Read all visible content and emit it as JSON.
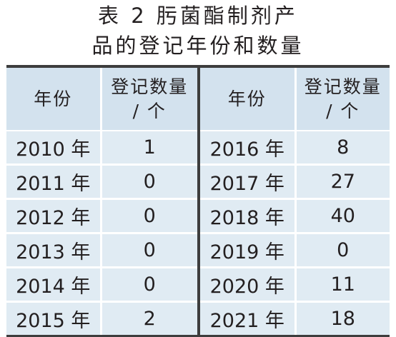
{
  "title": {
    "line1": "表 2  肟菌酯制剂产",
    "line2": "品的登记年份和数量"
  },
  "table": {
    "headers": {
      "year": "年份",
      "count_line1": "登记数量",
      "count_line2": "/ 个"
    },
    "left_rows": [
      {
        "year": "2010 年",
        "count": "1"
      },
      {
        "year": "2011 年",
        "count": "0"
      },
      {
        "year": "2012 年",
        "count": "0"
      },
      {
        "year": "2013 年",
        "count": "0"
      },
      {
        "year": "2014 年",
        "count": "0"
      },
      {
        "year": "2015 年",
        "count": "2"
      }
    ],
    "right_rows": [
      {
        "year": "2016 年",
        "count": "8"
      },
      {
        "year": "2017 年",
        "count": "27"
      },
      {
        "year": "2018 年",
        "count": "40"
      },
      {
        "year": "2019 年",
        "count": "0"
      },
      {
        "year": "2020 年",
        "count": "11"
      },
      {
        "year": "2021 年",
        "count": "18"
      }
    ]
  },
  "colors": {
    "header_bg": "#d3e2ee",
    "body_bg": "#e0ebf3",
    "rule": "#3d3d3d",
    "text": "#231f20"
  }
}
